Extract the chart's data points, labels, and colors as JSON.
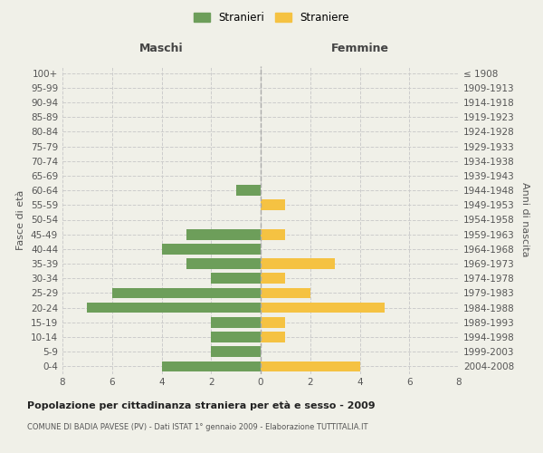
{
  "age_groups": [
    "0-4",
    "5-9",
    "10-14",
    "15-19",
    "20-24",
    "25-29",
    "30-34",
    "35-39",
    "40-44",
    "45-49",
    "50-54",
    "55-59",
    "60-64",
    "65-69",
    "70-74",
    "75-79",
    "80-84",
    "85-89",
    "90-94",
    "95-99",
    "100+"
  ],
  "birth_years": [
    "2004-2008",
    "1999-2003",
    "1994-1998",
    "1989-1993",
    "1984-1988",
    "1979-1983",
    "1974-1978",
    "1969-1973",
    "1964-1968",
    "1959-1963",
    "1954-1958",
    "1949-1953",
    "1944-1948",
    "1939-1943",
    "1934-1938",
    "1929-1933",
    "1924-1928",
    "1919-1923",
    "1914-1918",
    "1909-1913",
    "≤ 1908"
  ],
  "maschi": [
    4,
    2,
    2,
    2,
    7,
    6,
    2,
    3,
    4,
    3,
    0,
    0,
    1,
    0,
    0,
    0,
    0,
    0,
    0,
    0,
    0
  ],
  "femmine": [
    4,
    0,
    1,
    1,
    5,
    2,
    1,
    3,
    0,
    1,
    0,
    1,
    0,
    0,
    0,
    0,
    0,
    0,
    0,
    0,
    0
  ],
  "color_maschi": "#6d9e5a",
  "color_femmine": "#f5c242",
  "background_color": "#f0f0e8",
  "grid_color": "#cccccc",
  "xlim": 8,
  "title": "Popolazione per cittadinanza straniera per età e sesso - 2009",
  "subtitle": "COMUNE DI BADIA PAVESE (PV) - Dati ISTAT 1° gennaio 2009 - Elaborazione TUTTITALIA.IT",
  "ylabel_left": "Fasce di età",
  "ylabel_right": "Anni di nascita",
  "label_maschi": "Stranieri",
  "label_femmine": "Straniere",
  "header_maschi": "Maschi",
  "header_femmine": "Femmine"
}
